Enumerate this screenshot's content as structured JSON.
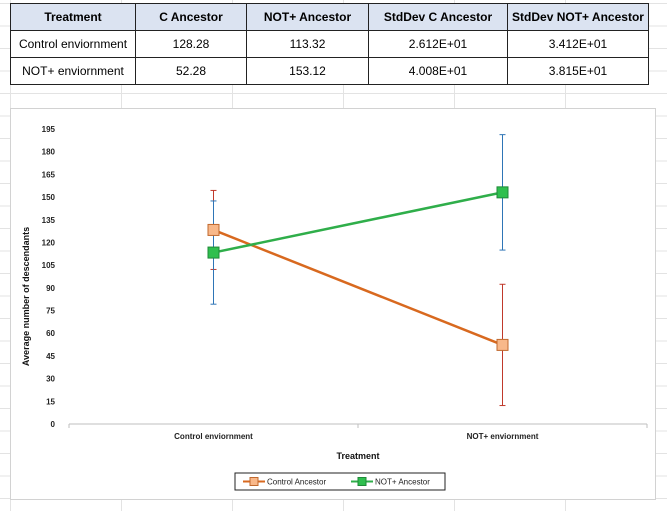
{
  "table": {
    "headers": [
      "Treatment",
      "C Ancestor",
      "NOT+ Ancestor",
      "StdDev C Ancestor",
      "StdDev NOT+ Ancestor"
    ],
    "rows": [
      [
        "Control enviornment",
        "128.28",
        "113.32",
        "2.612E+01",
        "3.412E+01"
      ],
      [
        "NOT+ enviornment",
        "52.28",
        "153.12",
        "4.008E+01",
        "3.815E+01"
      ]
    ]
  },
  "chart_data": {
    "type": "line",
    "categories": [
      "Control enviornment",
      "NOT+ enviornment"
    ],
    "series": [
      {
        "name": "Control Ancestor",
        "values": [
          128.28,
          52.28
        ],
        "errors": [
          26.12,
          40.08
        ],
        "color": "#d8691f",
        "marker_fill": "#f8b88a",
        "marker_stroke": "#c0692e",
        "error_color": "#c0392b"
      },
      {
        "name": "NOT+ Ancestor",
        "values": [
          113.32,
          153.12
        ],
        "errors": [
          34.12,
          38.15
        ],
        "color": "#2fae4a",
        "marker_fill": "#2fbf4e",
        "marker_stroke": "#1f8a38",
        "error_color": "#2e75b6"
      }
    ],
    "xlabel": "Treatment",
    "ylabel": "Average number of descendants",
    "ylim": [
      0,
      195
    ],
    "yticks": [
      0,
      15,
      30,
      45,
      60,
      75,
      90,
      105,
      120,
      135,
      150,
      165,
      180,
      195
    ],
    "grid": false,
    "legend_position": "bottom"
  }
}
